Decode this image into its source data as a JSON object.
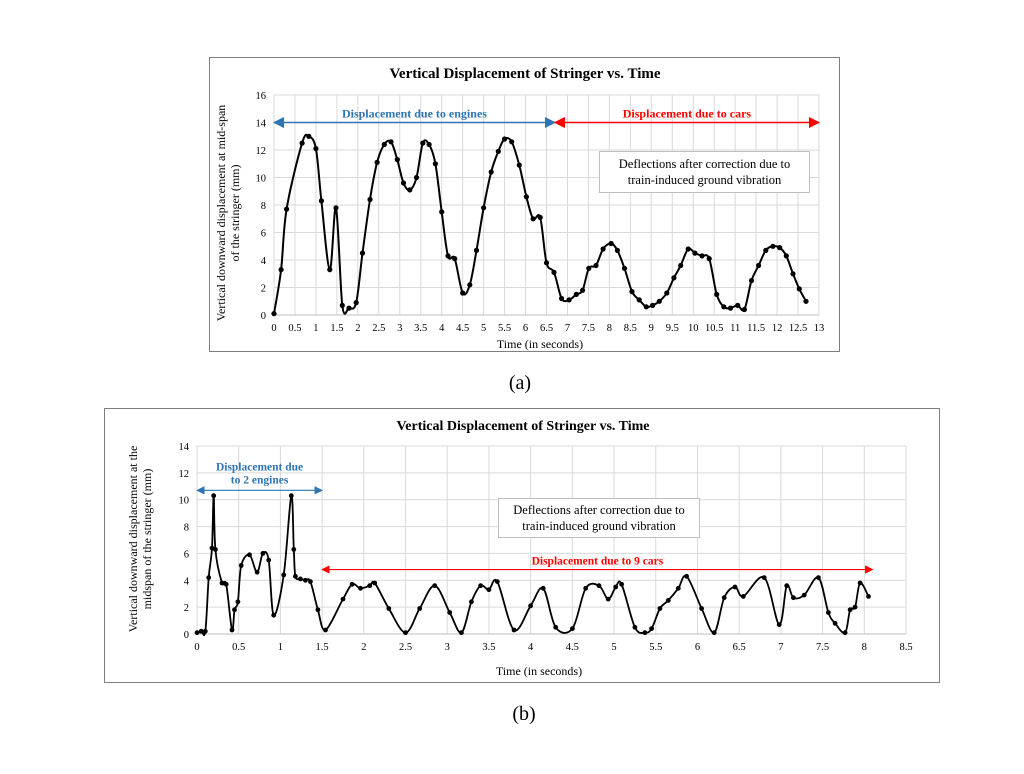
{
  "captions": {
    "a": "(a)",
    "b": "(b)"
  },
  "chart_data": [
    {
      "type": "line",
      "title": "Vertical Displacement of Stringer vs. Time",
      "xlabel": "Time (in seconds)",
      "ylabel": [
        "Vertical downward displacement at mid-span",
        "of the stringer (mm)"
      ],
      "xlim": [
        0,
        13
      ],
      "ylim": [
        0,
        16
      ],
      "xticks": [
        0,
        0.5,
        1,
        1.5,
        2,
        2.5,
        3,
        3.5,
        4,
        4.5,
        5,
        5.5,
        6,
        6.5,
        7,
        7.5,
        8,
        8.5,
        9,
        9.5,
        10,
        10.5,
        11,
        11.5,
        12,
        12.5,
        13
      ],
      "xtick_labels": [
        "0",
        "0.5",
        "1",
        "1.5",
        "2",
        "2.5",
        "3",
        "3.5",
        "4",
        "4.5",
        "5",
        "5.5",
        "6",
        "6.5",
        "7",
        "7.5",
        "8",
        "8.5",
        "9",
        "9.5",
        "10",
        "10.5",
        "11",
        "11.5",
        "12",
        "12.5",
        "13"
      ],
      "yticks": [
        0,
        2,
        4,
        6,
        8,
        10,
        12,
        14,
        16
      ],
      "ytick_labels": [
        "0",
        "2",
        "4",
        "6",
        "8",
        "10",
        "12",
        "14",
        "16"
      ],
      "grid": true,
      "legend": "none",
      "line_color": "#000000",
      "note": [
        "Deflections after correction due to",
        "train-induced ground vibration"
      ],
      "annotations": [
        {
          "text": "Displacement due to engines",
          "color": "#2e75b6",
          "x_start": 0,
          "x_end": 6.7,
          "y": 14
        },
        {
          "text": "Displacement due to cars",
          "color": "#ff0000",
          "x_start": 6.7,
          "x_end": 13,
          "y": 14
        }
      ],
      "series": [
        {
          "x": [
            0,
            0.17,
            0.3,
            0.67,
            0.83,
            1.0,
            1.13,
            1.33,
            1.48,
            1.63,
            1.79,
            1.96,
            2.11,
            2.29,
            2.46,
            2.63,
            2.79,
            2.94,
            3.09,
            3.24,
            3.4,
            3.55,
            3.7,
            3.85,
            4.0,
            4.15,
            4.31,
            4.5,
            4.67,
            4.83,
            5.0,
            5.18,
            5.35,
            5.5,
            5.67,
            5.85,
            6.02,
            6.18,
            6.35,
            6.5,
            6.68,
            6.86,
            7.04,
            7.21,
            7.36,
            7.51,
            7.68,
            7.85,
            8.04,
            8.19,
            8.36,
            8.54,
            8.71,
            8.88,
            9.03,
            9.19,
            9.37,
            9.54,
            9.7,
            9.88,
            10.04,
            10.21,
            10.38,
            10.56,
            10.73,
            10.89,
            11.06,
            11.22,
            11.39,
            11.56,
            11.73,
            11.9,
            12.06,
            12.22,
            12.38,
            12.53,
            12.69
          ],
          "y": [
            0.1,
            3.3,
            7.7,
            12.5,
            13.0,
            12.1,
            8.3,
            3.3,
            7.8,
            0.7,
            0.5,
            0.9,
            4.5,
            8.4,
            11.1,
            12.4,
            12.6,
            11.3,
            9.6,
            9.1,
            10.0,
            12.5,
            12.4,
            11.0,
            7.5,
            4.3,
            4.1,
            1.6,
            2.2,
            4.7,
            7.8,
            10.4,
            11.9,
            12.8,
            12.6,
            10.9,
            8.6,
            7.0,
            7.1,
            3.8,
            3.1,
            1.2,
            1.1,
            1.5,
            1.8,
            3.4,
            3.6,
            4.8,
            5.2,
            4.7,
            3.4,
            1.7,
            1.1,
            0.6,
            0.7,
            1.0,
            1.6,
            2.7,
            3.6,
            4.8,
            4.5,
            4.3,
            4.1,
            1.5,
            0.6,
            0.5,
            0.7,
            0.4,
            2.5,
            3.6,
            4.7,
            5.0,
            4.9,
            4.3,
            3.0,
            1.9,
            1.0
          ]
        }
      ]
    },
    {
      "type": "line",
      "title": "Vertical Displacement of Stringer vs. Time",
      "xlabel": "Time (in seconds)",
      "ylabel": [
        "Vertical downward displacement at the",
        "midspan of the stringer (mm)"
      ],
      "xlim": [
        0,
        8.5
      ],
      "ylim": [
        0,
        14
      ],
      "xticks": [
        0,
        0.5,
        1,
        1.5,
        2,
        2.5,
        3,
        3.5,
        4,
        4.5,
        5,
        5.5,
        6,
        6.5,
        7,
        7.5,
        8,
        8.5
      ],
      "xtick_labels": [
        "0",
        "0.5",
        "1",
        "1.5",
        "2",
        "2.5",
        "3",
        "3.5",
        "4",
        "4.5",
        "5",
        "5.5",
        "6",
        "6.5",
        "7",
        "7.5",
        "8",
        "8.5"
      ],
      "yticks": [
        0,
        2,
        4,
        6,
        8,
        10,
        12,
        14
      ],
      "ytick_labels": [
        "0",
        "2",
        "4",
        "6",
        "8",
        "10",
        "12",
        "14"
      ],
      "grid": true,
      "legend": "none",
      "line_color": "#000000",
      "note": [
        "Deflections after correction due to",
        "train-induced ground vibration"
      ],
      "annotations": [
        {
          "text": [
            "Displacement due",
            "to 2 engines"
          ],
          "color": "#2e75b6",
          "x_start": 0,
          "x_end": 1.5,
          "y": 10.7
        },
        {
          "text": "Displacement due to 9 cars",
          "color": "#ff0000",
          "x_start": 1.5,
          "x_end": 8.1,
          "y": 4.8
        }
      ],
      "series": [
        {
          "x": [
            0,
            0.05,
            0.1,
            0.14,
            0.18,
            0.2,
            0.22,
            0.3,
            0.35,
            0.42,
            0.45,
            0.49,
            0.53,
            0.63,
            0.72,
            0.79,
            0.86,
            0.92,
            1.04,
            1.13,
            1.16,
            1.18,
            1.24,
            1.3,
            1.36,
            1.45,
            1.54,
            1.75,
            1.86,
            1.96,
            2.07,
            2.13,
            2.3,
            2.5,
            2.67,
            2.85,
            3.03,
            3.17,
            3.29,
            3.4,
            3.5,
            3.6,
            3.8,
            4.0,
            4.15,
            4.3,
            4.5,
            4.66,
            4.82,
            4.93,
            5.02,
            5.09,
            5.25,
            5.37,
            5.45,
            5.55,
            5.65,
            5.77,
            5.87,
            6.05,
            6.2,
            6.32,
            6.45,
            6.55,
            6.8,
            6.98,
            7.07,
            7.15,
            7.28,
            7.45,
            7.57,
            7.65,
            7.77,
            7.83,
            7.89,
            7.95,
            8.05
          ],
          "y": [
            0.1,
            0.2,
            0.2,
            4.2,
            6.4,
            10.3,
            6.3,
            3.8,
            3.7,
            0.3,
            1.8,
            2.4,
            5.1,
            5.9,
            4.6,
            6.0,
            5.5,
            1.4,
            4.4,
            10.3,
            6.3,
            4.3,
            4.1,
            4.0,
            3.9,
            1.8,
            0.3,
            2.6,
            3.7,
            3.4,
            3.6,
            3.8,
            1.9,
            0.1,
            1.9,
            3.6,
            1.6,
            0.1,
            2.4,
            3.6,
            3.3,
            3.9,
            0.3,
            2.1,
            3.4,
            0.5,
            0.4,
            3.4,
            3.6,
            2.6,
            3.5,
            3.7,
            0.5,
            0.1,
            0.4,
            1.9,
            2.5,
            3.4,
            4.3,
            1.9,
            0.1,
            2.7,
            3.5,
            2.8,
            4.2,
            0.7,
            3.6,
            2.7,
            2.9,
            4.2,
            1.6,
            0.8,
            0.1,
            1.8,
            2.0,
            3.8,
            2.8
          ]
        }
      ]
    }
  ]
}
